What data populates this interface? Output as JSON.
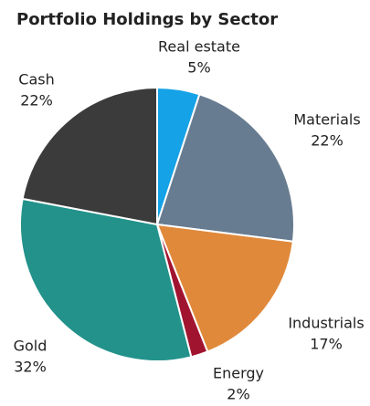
{
  "chart_data": {
    "type": "pie",
    "title": "Portfolio Holdings by Sector",
    "categories": [
      "Real estate",
      "Materials",
      "Industrials",
      "Energy",
      "Gold",
      "Cash"
    ],
    "values": [
      5,
      22,
      17,
      2,
      32,
      22
    ],
    "value_labels": [
      "5%",
      "22%",
      "17%",
      "2%",
      "32%",
      "22%"
    ],
    "colors": [
      "#15a2e6",
      "#687c91",
      "#e0893a",
      "#a11430",
      "#22928a",
      "#3b3b3b"
    ]
  }
}
